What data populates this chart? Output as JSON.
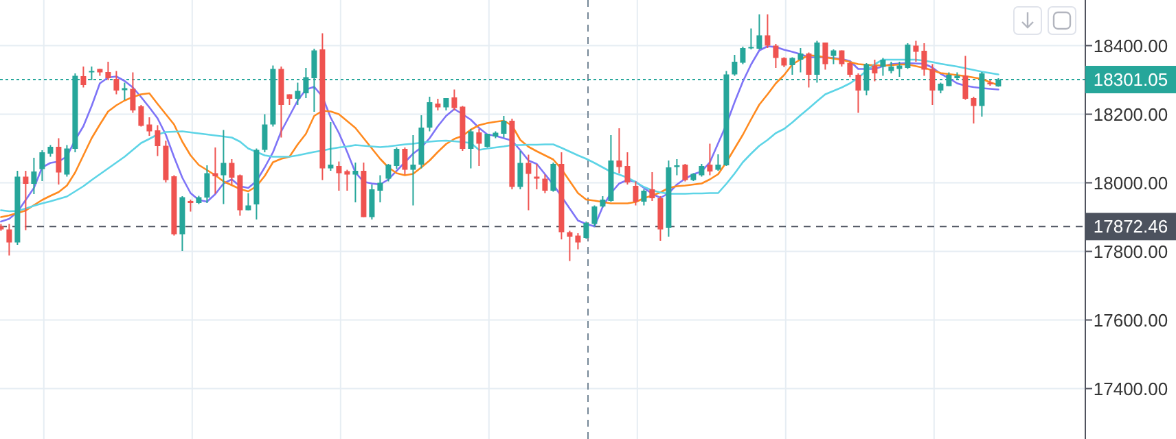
{
  "chart_data": {
    "type": "candlestick",
    "categories": [
      null,
      null,
      null,
      null,
      null,
      null,
      null,
      null,
      null,
      null,
      null,
      null,
      null,
      null,
      null,
      null,
      null,
      null,
      null,
      null,
      null,
      null,
      null,
      null,
      null,
      null,
      null,
      null,
      null,
      null,
      null,
      null,
      null,
      null,
      null,
      null,
      null,
      null,
      null,
      null,
      null,
      null,
      null,
      null,
      null,
      null,
      null,
      null,
      null,
      null,
      null,
      null,
      null,
      null,
      null,
      null,
      null,
      null,
      null,
      null,
      null,
      null,
      null,
      null,
      null,
      null,
      null,
      null,
      null,
      null,
      null,
      null,
      null,
      null,
      null,
      null,
      null,
      null,
      null,
      null,
      null,
      null,
      null,
      null,
      null,
      null,
      null,
      null,
      null,
      null,
      null,
      null,
      null,
      null,
      null,
      null,
      null,
      null,
      null,
      null,
      null,
      null,
      null,
      null,
      null,
      null,
      null,
      null,
      null,
      null,
      null,
      null,
      null,
      null,
      null,
      null,
      null,
      null,
      null,
      null,
      null,
      null
    ],
    "ohlc": [
      [
        17873,
        17880,
        17860,
        17864
      ],
      [
        17864,
        17880,
        17788,
        17826
      ],
      [
        17826,
        18035,
        17819,
        18018
      ],
      [
        18018,
        18035,
        17862,
        17997
      ],
      [
        17997,
        18073,
        17967,
        18033
      ],
      [
        18040,
        18095,
        18005,
        18089
      ],
      [
        18085,
        18110,
        18076,
        18105
      ],
      [
        18105,
        18130,
        17995,
        18030
      ],
      [
        18024,
        18110,
        18018,
        18100
      ],
      [
        18099,
        18319,
        18089,
        18312
      ],
      [
        18311,
        18339,
        18278,
        18285
      ],
      [
        18323,
        18339,
        18299,
        18326
      ],
      [
        18332,
        18332,
        18312,
        18322
      ],
      [
        18323,
        18353,
        18299,
        18305
      ],
      [
        18303,
        18326,
        18258,
        18269
      ],
      [
        18270,
        18292,
        18241,
        18276
      ],
      [
        18274,
        18322,
        18204,
        18211
      ],
      [
        18223,
        18227,
        18164,
        18166
      ],
      [
        18170,
        18191,
        18137,
        18150
      ],
      [
        18153,
        18168,
        18078,
        18107
      ],
      [
        18108,
        18123,
        18001,
        18008
      ],
      [
        18019,
        18022,
        17846,
        17850
      ],
      [
        17850,
        17961,
        17801,
        17958
      ],
      [
        17947,
        17951,
        17916,
        17941
      ],
      [
        17941,
        17962,
        17938,
        17958
      ],
      [
        17957,
        18051,
        17941,
        18028
      ],
      [
        18028,
        18103,
        17968,
        18019
      ],
      [
        18022,
        18154,
        17938,
        18058
      ],
      [
        18058,
        18069,
        17995,
        18015
      ],
      [
        18022,
        18024,
        17904,
        17920
      ],
      [
        17920,
        17970,
        17920,
        17934
      ],
      [
        17937,
        18100,
        17893,
        18096
      ],
      [
        18096,
        18200,
        18089,
        18170
      ],
      [
        18170,
        18342,
        18164,
        18332
      ],
      [
        18332,
        18339,
        18132,
        18227
      ],
      [
        18258,
        18258,
        18227,
        18245
      ],
      [
        18245,
        18292,
        18227,
        18268
      ],
      [
        18261,
        18335,
        18247,
        18308
      ],
      [
        18305,
        18391,
        18207,
        18386
      ],
      [
        18389,
        18436,
        18008,
        18042
      ],
      [
        18042,
        18177,
        18035,
        18053
      ],
      [
        18049,
        18062,
        17977,
        18028
      ],
      [
        18034,
        18038,
        17977,
        18024
      ],
      [
        18024,
        18059,
        17943,
        18035
      ],
      [
        18035,
        18059,
        17900,
        17900
      ],
      [
        17900,
        17995,
        17893,
        17981
      ],
      [
        17977,
        18022,
        17943,
        18000
      ],
      [
        18012,
        18055,
        18004,
        18053
      ],
      [
        18049,
        18103,
        18041,
        18099
      ],
      [
        18099,
        18103,
        18024,
        18038
      ],
      [
        18038,
        18139,
        17934,
        18053
      ],
      [
        18053,
        18197,
        18042,
        18161
      ],
      [
        18161,
        18251,
        18150,
        18235
      ],
      [
        18231,
        18245,
        18211,
        18220
      ],
      [
        18220,
        18247,
        18211,
        18247
      ],
      [
        18249,
        18272,
        18211,
        18218
      ],
      [
        18222,
        18224,
        18093,
        18099
      ],
      [
        18099,
        18157,
        18042,
        18150
      ],
      [
        18147,
        18157,
        18049,
        18114
      ],
      [
        18105,
        18143,
        18103,
        18143
      ],
      [
        18135,
        18150,
        18130,
        18146
      ],
      [
        18143,
        18195,
        18132,
        18181
      ],
      [
        18181,
        18187,
        17981,
        17988
      ],
      [
        17988,
        18093,
        17981,
        18058
      ],
      [
        18058,
        18082,
        17920,
        18026
      ],
      [
        18018,
        18055,
        17981,
        18012
      ],
      [
        18012,
        18024,
        17970,
        17977
      ],
      [
        17977,
        18059,
        17974,
        18055
      ],
      [
        18055,
        18089,
        17835,
        17856
      ],
      [
        17856,
        17860,
        17772,
        17843
      ],
      [
        17846,
        17853,
        17806,
        17826
      ],
      [
        17839,
        17887,
        17837,
        17883
      ],
      [
        17880,
        17934,
        17873,
        17931
      ],
      [
        17931,
        17961,
        17928,
        17951
      ],
      [
        17947,
        18139,
        17945,
        18065
      ],
      [
        18065,
        18159,
        18028,
        18046
      ],
      [
        18049,
        18089,
        17995,
        18001
      ],
      [
        17991,
        18004,
        17934,
        17945
      ],
      [
        17945,
        17981,
        17934,
        17977
      ],
      [
        17981,
        18031,
        17947,
        17955
      ],
      [
        17955,
        17961,
        17831,
        17864
      ],
      [
        17869,
        18065,
        17843,
        18045
      ],
      [
        18046,
        18069,
        18022,
        18051
      ],
      [
        18053,
        18055,
        18004,
        18008
      ],
      [
        18008,
        18028,
        18005,
        18026
      ],
      [
        18022,
        18055,
        18018,
        18049
      ],
      [
        18053,
        18114,
        18022,
        18033
      ],
      [
        18038,
        18083,
        18035,
        18053
      ],
      [
        18051,
        18326,
        18049,
        18316
      ],
      [
        18316,
        18373,
        18312,
        18353
      ],
      [
        18350,
        18397,
        18346,
        18393
      ],
      [
        18393,
        18450,
        18389,
        18396
      ],
      [
        18391,
        18491,
        18389,
        18430
      ],
      [
        18430,
        18491,
        18393,
        18400
      ],
      [
        18400,
        18405,
        18335,
        18364
      ],
      [
        18364,
        18366,
        18337,
        18342
      ],
      [
        18343,
        18366,
        18315,
        18364
      ],
      [
        18359,
        18393,
        18322,
        18377
      ],
      [
        18377,
        18380,
        18278,
        18315
      ],
      [
        18315,
        18414,
        18292,
        18409
      ],
      [
        18409,
        18409,
        18330,
        18346
      ],
      [
        18370,
        18389,
        18346,
        18386
      ],
      [
        18386,
        18386,
        18339,
        18346
      ],
      [
        18349,
        18353,
        18308,
        18315
      ],
      [
        18315,
        18319,
        18204,
        18269
      ],
      [
        18269,
        18349,
        18255,
        18346
      ],
      [
        18342,
        18359,
        18296,
        18319
      ],
      [
        18338,
        18364,
        18312,
        18359
      ],
      [
        18326,
        18353,
        18319,
        18339
      ],
      [
        18332,
        18353,
        18309,
        18342
      ],
      [
        18335,
        18407,
        18332,
        18403
      ],
      [
        18400,
        18414,
        18353,
        18382
      ],
      [
        18385,
        18407,
        18312,
        18330
      ],
      [
        18332,
        18346,
        18227,
        18269
      ],
      [
        18269,
        18292,
        18261,
        18289
      ],
      [
        18282,
        18322,
        18282,
        18315
      ],
      [
        18305,
        18322,
        18300,
        18312
      ],
      [
        18312,
        18370,
        18242,
        18245
      ],
      [
        18247,
        18251,
        18173,
        18224
      ],
      [
        18224,
        18323,
        18193,
        18319
      ],
      [
        18292,
        18299,
        18283,
        18287
      ],
      [
        18281,
        18305,
        18280,
        18301
      ]
    ],
    "series": [
      {
        "type": "line",
        "color": "#7e74f7",
        "values": [
          17887,
          17895,
          17915,
          17950,
          17985,
          18045,
          18058,
          18062,
          18077,
          18125,
          18165,
          18224,
          18290,
          18307,
          18310,
          18297,
          18278,
          18250,
          18220,
          18188,
          18140,
          18075,
          18015,
          17970,
          17950,
          17945,
          17967,
          17998,
          18010,
          17990,
          17985,
          18005,
          18045,
          18089,
          18150,
          18195,
          18240,
          18272,
          18280,
          18251,
          18190,
          18145,
          18090,
          18030,
          18003,
          17998,
          17995,
          18010,
          18035,
          18060,
          18085,
          18103,
          18130,
          18165,
          18195,
          18215,
          18200,
          18184,
          18160,
          18141,
          18137,
          18130,
          18123,
          18095,
          18065,
          18055,
          18025,
          17995,
          17960,
          17925,
          17890,
          17880,
          17873,
          17930,
          17970,
          17998,
          18008,
          18003,
          17985,
          17968,
          17956,
          17970,
          17995,
          18012,
          18025,
          18033,
          18060,
          18115,
          18170,
          18235,
          18295,
          18345,
          18386,
          18398,
          18396,
          18388,
          18382,
          18375,
          18366,
          18366,
          18366,
          18364,
          18361,
          18355,
          18332,
          18332,
          18332,
          18340,
          18346,
          18348,
          18349,
          18348,
          18347,
          18336,
          18318,
          18305,
          18290,
          18283,
          18279,
          18276,
          18274,
          18272
        ]
      },
      {
        "type": "line",
        "color": "#ff8a1f",
        "values": [
          17900,
          17905,
          17912,
          17919,
          17935,
          17950,
          17962,
          17973,
          17992,
          18030,
          18080,
          18130,
          18170,
          18208,
          18226,
          18240,
          18250,
          18258,
          18261,
          18230,
          18200,
          18170,
          18120,
          18080,
          18052,
          18037,
          18022,
          18004,
          17993,
          17982,
          17975,
          17990,
          18020,
          18060,
          18070,
          18076,
          18112,
          18143,
          18195,
          18210,
          18208,
          18200,
          18180,
          18160,
          18130,
          18100,
          18070,
          18045,
          18028,
          18022,
          18026,
          18045,
          18065,
          18090,
          18113,
          18128,
          18137,
          18155,
          18168,
          18174,
          18178,
          18181,
          18167,
          18125,
          18105,
          18092,
          18080,
          18068,
          18040,
          18005,
          17970,
          17951,
          17948,
          17944,
          17940,
          17940,
          17940,
          17944,
          17955,
          17963,
          17972,
          17985,
          17990,
          17992,
          17995,
          17998,
          18010,
          18025,
          18060,
          18100,
          18140,
          18185,
          18228,
          18258,
          18290,
          18314,
          18345,
          18360,
          18372,
          18370,
          18366,
          18362,
          18359,
          18352,
          18346,
          18344,
          18343,
          18342,
          18343,
          18345,
          18345,
          18340,
          18335,
          18328,
          18320,
          18317,
          18314,
          18311,
          18307,
          18303,
          18293,
          18285
        ]
      },
      {
        "type": "line",
        "color": "#5dd4e6",
        "values": [
          17920,
          17917,
          17918,
          17925,
          17933,
          17940,
          17946,
          17953,
          17960,
          17975,
          17990,
          18008,
          18025,
          18042,
          18059,
          18076,
          18096,
          18116,
          18128,
          18141,
          18148,
          18149,
          18150,
          18147,
          18144,
          18141,
          18138,
          18135,
          18132,
          18120,
          18100,
          18090,
          18080,
          18076,
          18076,
          18076,
          18080,
          18085,
          18090,
          18094,
          18099,
          18103,
          18106,
          18110,
          18108,
          18106,
          18104,
          18106,
          18109,
          18112,
          18114,
          18117,
          18120,
          18122,
          18123,
          18121,
          18119,
          18116,
          18096,
          18100,
          18103,
          18106,
          18110,
          18110,
          18111,
          18111,
          18112,
          18112,
          18102,
          18091,
          18080,
          18070,
          18058,
          18045,
          18032,
          18024,
          18015,
          18002,
          17988,
          17978,
          17972,
          17968,
          17968,
          17968,
          17969,
          17969,
          17970,
          17970,
          17997,
          18027,
          18060,
          18085,
          18108,
          18125,
          18145,
          18157,
          18176,
          18197,
          18217,
          18238,
          18258,
          18268,
          18278,
          18290,
          18306,
          18327,
          18346,
          18359,
          18359,
          18359,
          18359,
          18359,
          18356,
          18352,
          18347,
          18343,
          18339,
          18334,
          18329,
          18324,
          18320,
          18316
        ]
      }
    ],
    "ylim": [
      17253,
      18533
    ],
    "yticks": [
      {
        "value": 17400,
        "label": "17400.00"
      },
      {
        "value": 17600,
        "label": "17600.00"
      },
      {
        "value": 17800,
        "label": "17800.00"
      },
      {
        "value": 18000,
        "label": "18000.00"
      },
      {
        "value": 18200,
        "label": "18200.00"
      },
      {
        "value": 18400,
        "label": "18400.00"
      }
    ],
    "ref_lines": [
      {
        "axis": "y",
        "value": 18301.05,
        "label": "18301.05",
        "color": "#26a69a",
        "line_style": "dotted"
      },
      {
        "axis": "y",
        "value": 17872.46,
        "label": "17872.46",
        "color": "#4c525e",
        "line_style": "dashed"
      }
    ],
    "grid": true,
    "tick_labels": "y"
  }
}
